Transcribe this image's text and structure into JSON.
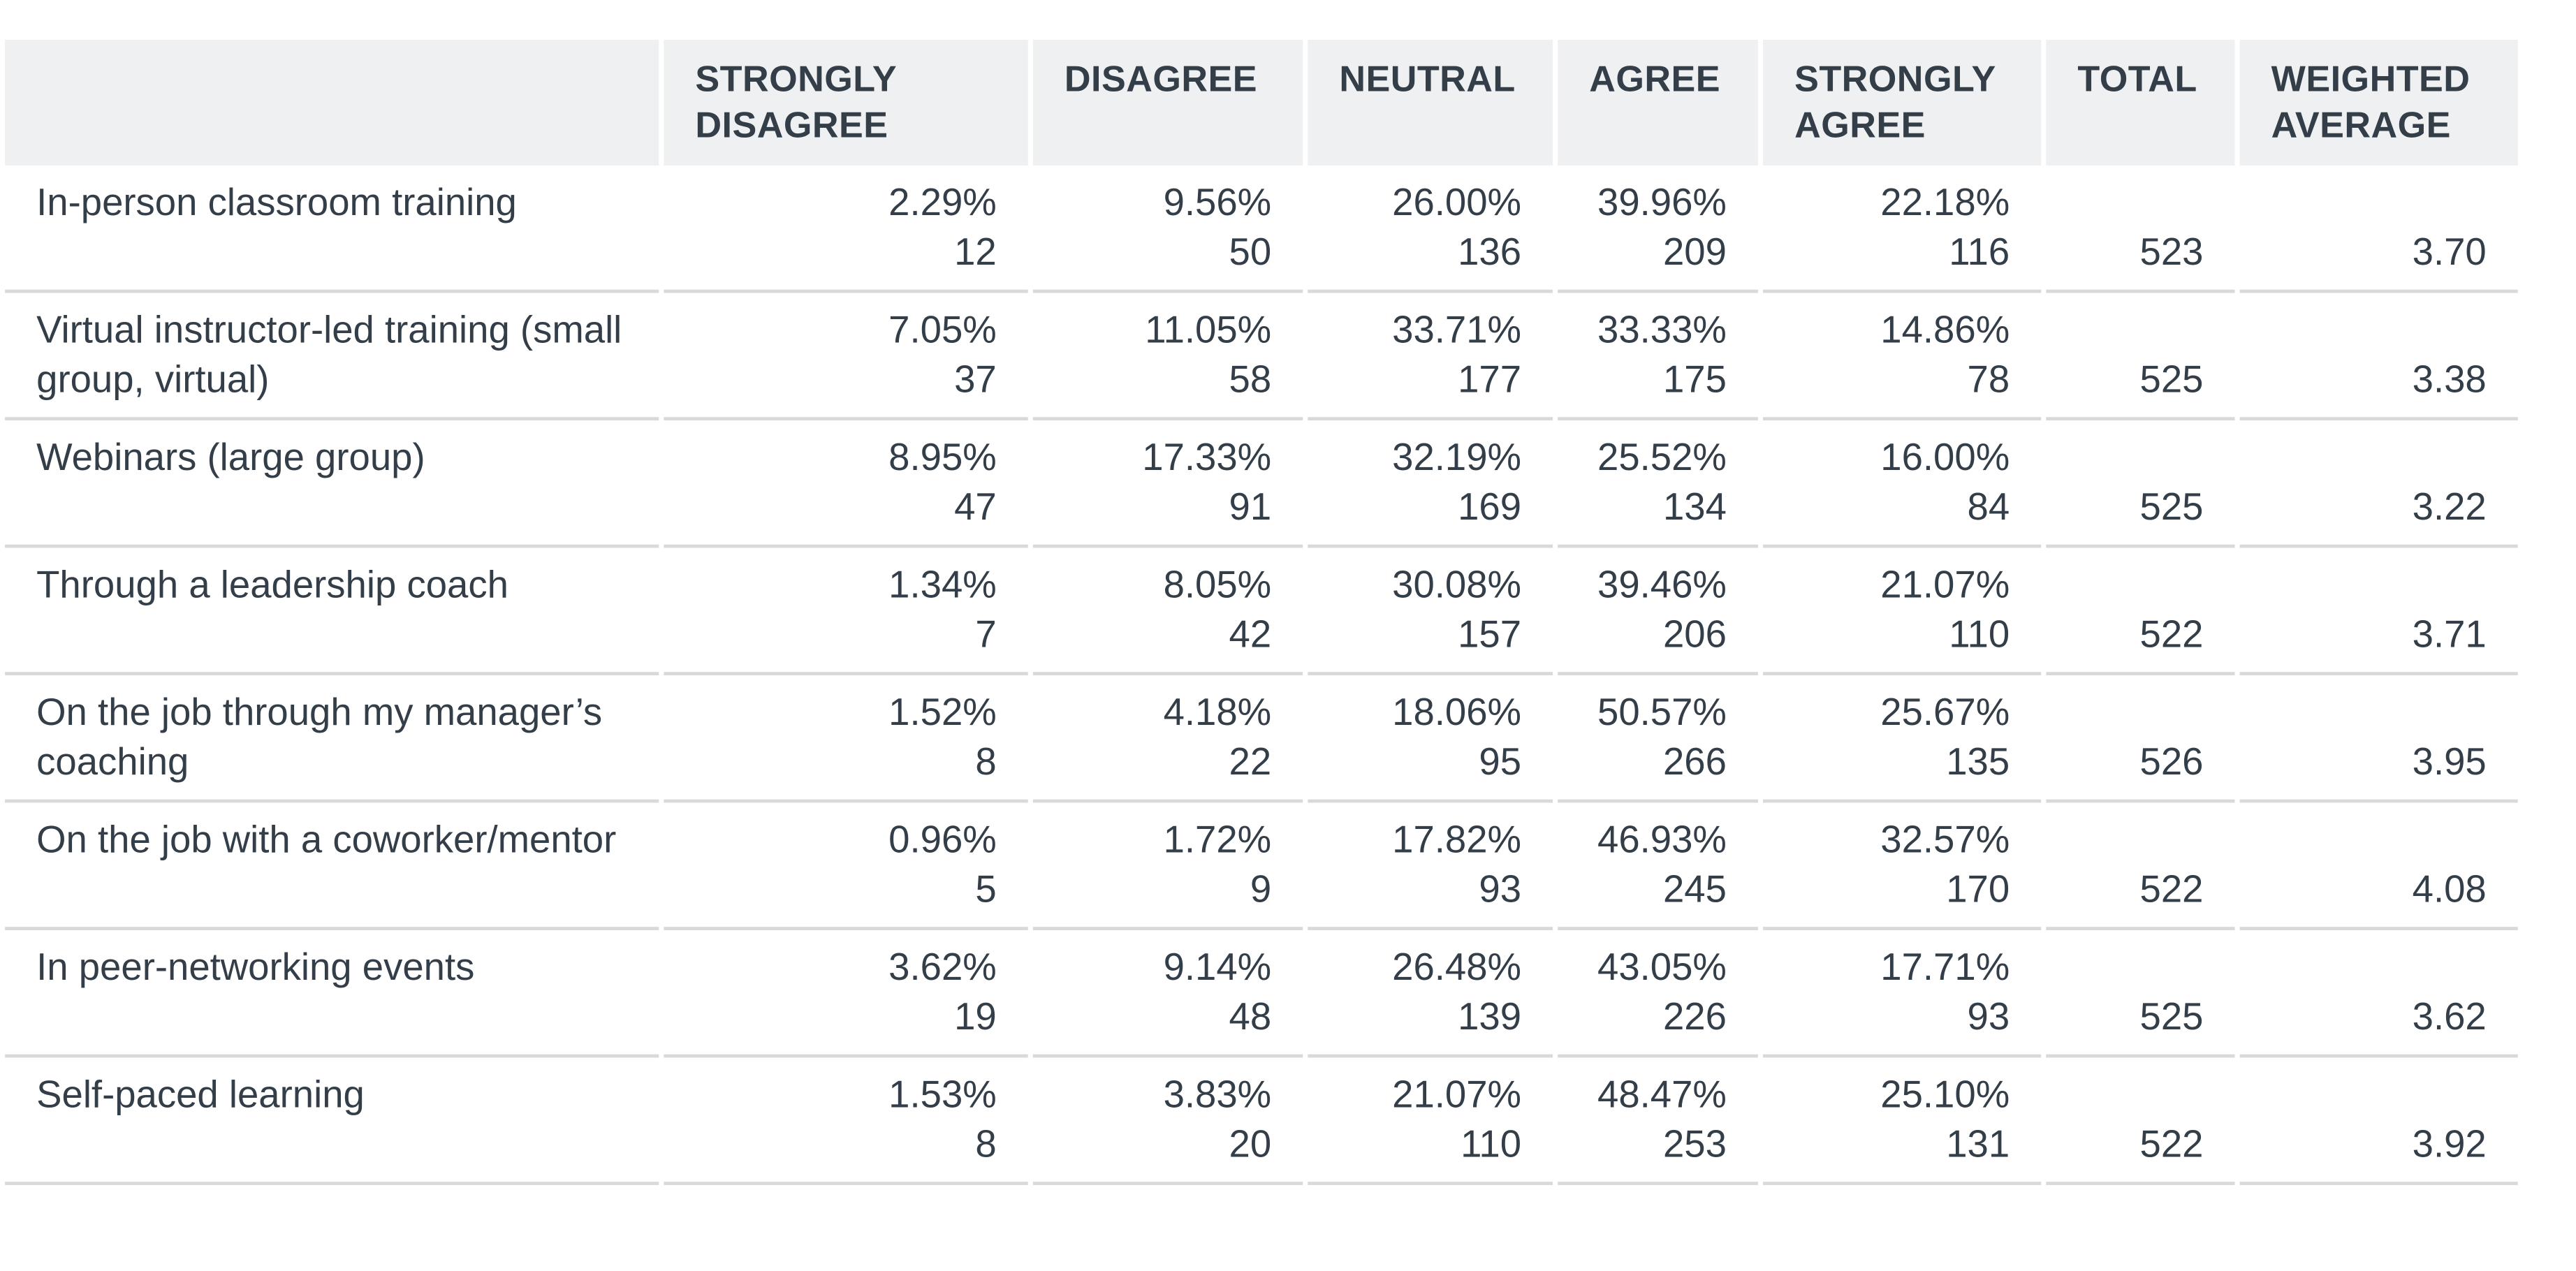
{
  "chart_data": {
    "type": "table",
    "columns": [
      "",
      "STRONGLY DISAGREE",
      "DISAGREE",
      "NEUTRAL",
      "AGREE",
      "STRONGLY AGREE",
      "TOTAL",
      "WEIGHTED AVERAGE"
    ],
    "rows": [
      {
        "label": "In-person classroom training",
        "cells": [
          {
            "pct": "2.29%",
            "count": "12"
          },
          {
            "pct": "9.56%",
            "count": "50"
          },
          {
            "pct": "26.00%",
            "count": "136"
          },
          {
            "pct": "39.96%",
            "count": "209"
          },
          {
            "pct": "22.18%",
            "count": "116"
          }
        ],
        "total": "523",
        "weighted_average": "3.70"
      },
      {
        "label": "Virtual instructor-led training (small group, virtual)",
        "cells": [
          {
            "pct": "7.05%",
            "count": "37"
          },
          {
            "pct": "11.05%",
            "count": "58"
          },
          {
            "pct": "33.71%",
            "count": "177"
          },
          {
            "pct": "33.33%",
            "count": "175"
          },
          {
            "pct": "14.86%",
            "count": "78"
          }
        ],
        "total": "525",
        "weighted_average": "3.38"
      },
      {
        "label": "Webinars (large group)",
        "cells": [
          {
            "pct": "8.95%",
            "count": "47"
          },
          {
            "pct": "17.33%",
            "count": "91"
          },
          {
            "pct": "32.19%",
            "count": "169"
          },
          {
            "pct": "25.52%",
            "count": "134"
          },
          {
            "pct": "16.00%",
            "count": "84"
          }
        ],
        "total": "525",
        "weighted_average": "3.22"
      },
      {
        "label": "Through a leadership coach",
        "cells": [
          {
            "pct": "1.34%",
            "count": "7"
          },
          {
            "pct": "8.05%",
            "count": "42"
          },
          {
            "pct": "30.08%",
            "count": "157"
          },
          {
            "pct": "39.46%",
            "count": "206"
          },
          {
            "pct": "21.07%",
            "count": "110"
          }
        ],
        "total": "522",
        "weighted_average": "3.71"
      },
      {
        "label": "On the job through my manager’s coaching",
        "cells": [
          {
            "pct": "1.52%",
            "count": "8"
          },
          {
            "pct": "4.18%",
            "count": "22"
          },
          {
            "pct": "18.06%",
            "count": "95"
          },
          {
            "pct": "50.57%",
            "count": "266"
          },
          {
            "pct": "25.67%",
            "count": "135"
          }
        ],
        "total": "526",
        "weighted_average": "3.95"
      },
      {
        "label": "On the job with a coworker/mentor",
        "cells": [
          {
            "pct": "0.96%",
            "count": "5"
          },
          {
            "pct": "1.72%",
            "count": "9"
          },
          {
            "pct": "17.82%",
            "count": "93"
          },
          {
            "pct": "46.93%",
            "count": "245"
          },
          {
            "pct": "32.57%",
            "count": "170"
          }
        ],
        "total": "522",
        "weighted_average": "4.08"
      },
      {
        "label": "In peer-networking events",
        "cells": [
          {
            "pct": "3.62%",
            "count": "19"
          },
          {
            "pct": "9.14%",
            "count": "48"
          },
          {
            "pct": "26.48%",
            "count": "139"
          },
          {
            "pct": "43.05%",
            "count": "226"
          },
          {
            "pct": "17.71%",
            "count": "93"
          }
        ],
        "total": "525",
        "weighted_average": "3.62"
      },
      {
        "label": "Self-paced learning",
        "cells": [
          {
            "pct": "1.53%",
            "count": "8"
          },
          {
            "pct": "3.83%",
            "count": "20"
          },
          {
            "pct": "21.07%",
            "count": "110"
          },
          {
            "pct": "48.47%",
            "count": "253"
          },
          {
            "pct": "25.10%",
            "count": "131"
          }
        ],
        "total": "522",
        "weighted_average": "3.92"
      }
    ]
  },
  "colors": {
    "text": "#333e48",
    "header_bg": "#eff0f1",
    "row_divider": "#d8d9da",
    "background": "#ffffff"
  }
}
